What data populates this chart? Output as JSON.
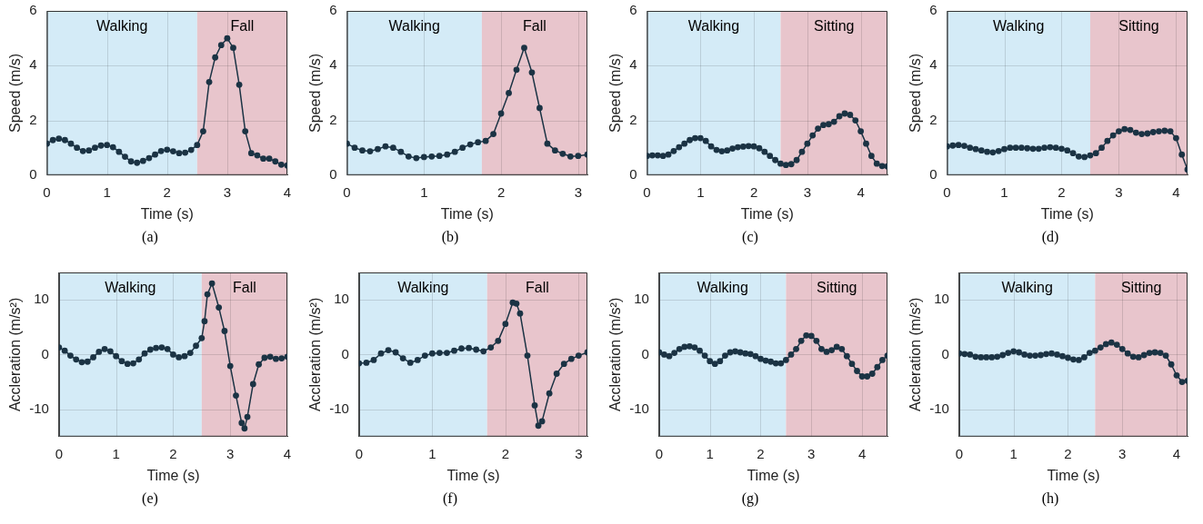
{
  "chart_data": [
    {
      "type": "line",
      "xlabel": "Time (s)",
      "ylabel": "Speed (m/s)",
      "xlim": [
        0,
        4
      ],
      "ylim": [
        0,
        6
      ],
      "xticks": [
        0,
        1,
        2,
        3,
        4
      ],
      "yticks": [
        0,
        2,
        4,
        6
      ],
      "grid": true,
      "marker": "circle",
      "annotations": [
        "(a)"
      ],
      "bands": [
        {
          "axis": "x",
          "from": 0,
          "to": 2.5,
          "label": "Walking",
          "color": "#d4ebf7"
        },
        {
          "axis": "x",
          "from": 2.5,
          "to": 4,
          "label": "Fall",
          "color": "#e8c5cc"
        }
      ],
      "series": [
        {
          "color": "#1b3344",
          "x": [
            0,
            0.1,
            0.2,
            0.3,
            0.4,
            0.5,
            0.6,
            0.7,
            0.8,
            0.9,
            1,
            1.1,
            1.2,
            1.3,
            1.4,
            1.5,
            1.6,
            1.7,
            1.8,
            1.9,
            2,
            2.1,
            2.2,
            2.3,
            2.4,
            2.5,
            2.6,
            2.7,
            2.8,
            2.9,
            3,
            3.1,
            3.2,
            3.3,
            3.4,
            3.5,
            3.6,
            3.7,
            3.8,
            3.9,
            4
          ],
          "values": [
            1.15,
            1.28,
            1.33,
            1.28,
            1.15,
            1,
            0.88,
            0.9,
            1,
            1.08,
            1.1,
            1.02,
            0.85,
            0.67,
            0.5,
            0.45,
            0.52,
            0.62,
            0.75,
            0.88,
            0.93,
            0.87,
            0.8,
            0.82,
            0.92,
            1.1,
            1.6,
            3.4,
            4.3,
            4.75,
            5,
            4.65,
            3.3,
            1.6,
            0.8,
            0.72,
            0.6,
            0.6,
            0.5,
            0.38,
            0.35
          ]
        }
      ]
    },
    {
      "type": "line",
      "xlabel": "Time (s)",
      "ylabel": "Speed (m/s)",
      "xlim": [
        0,
        3.12
      ],
      "ylim": [
        0,
        6
      ],
      "xticks": [
        0,
        1,
        2,
        3
      ],
      "yticks": [
        0,
        2,
        4,
        6
      ],
      "grid": true,
      "marker": "circle",
      "annotations": [
        "(b)"
      ],
      "bands": [
        {
          "axis": "x",
          "from": 0,
          "to": 1.75,
          "label": "Walking",
          "color": "#d4ebf7"
        },
        {
          "axis": "x",
          "from": 1.75,
          "to": 3.12,
          "label": "Fall",
          "color": "#e8c5cc"
        }
      ],
      "series": [
        {
          "color": "#1b3344",
          "x": [
            0,
            0.1,
            0.2,
            0.3,
            0.4,
            0.5,
            0.6,
            0.7,
            0.8,
            0.9,
            1,
            1.1,
            1.2,
            1.3,
            1.4,
            1.5,
            1.6,
            1.7,
            1.8,
            1.9,
            2,
            2.1,
            2.2,
            2.3,
            2.4,
            2.5,
            2.6,
            2.7,
            2.8,
            2.9,
            3,
            3.12
          ],
          "values": [
            1.15,
            1,
            0.9,
            0.87,
            0.95,
            1.05,
            1,
            0.85,
            0.68,
            0.62,
            0.66,
            0.68,
            0.7,
            0.75,
            0.85,
            1,
            1.12,
            1.2,
            1.25,
            1.5,
            2.25,
            3,
            3.85,
            4.65,
            3.75,
            2.45,
            1.15,
            0.9,
            0.78,
            0.68,
            0.7,
            0.75
          ]
        }
      ]
    },
    {
      "type": "line",
      "xlabel": "Time (s)",
      "ylabel": "Speed (m/s)",
      "xlim": [
        0,
        4.5
      ],
      "ylim": [
        0,
        6
      ],
      "xticks": [
        0,
        1,
        2,
        3,
        4
      ],
      "yticks": [
        0,
        2,
        4,
        6
      ],
      "grid": true,
      "marker": "circle",
      "annotations": [
        "(c)"
      ],
      "bands": [
        {
          "axis": "x",
          "from": 0,
          "to": 2.5,
          "label": "Walking",
          "color": "#d4ebf7"
        },
        {
          "axis": "x",
          "from": 2.5,
          "to": 4.5,
          "label": "Sitting",
          "color": "#e8c5cc"
        }
      ],
      "series": [
        {
          "color": "#1b3344",
          "x": [
            0,
            0.1,
            0.2,
            0.3,
            0.4,
            0.5,
            0.6,
            0.7,
            0.8,
            0.9,
            1,
            1.1,
            1.2,
            1.3,
            1.4,
            1.5,
            1.6,
            1.7,
            1.8,
            1.9,
            2,
            2.1,
            2.2,
            2.3,
            2.4,
            2.5,
            2.6,
            2.7,
            2.8,
            2.9,
            3,
            3.1,
            3.2,
            3.3,
            3.4,
            3.5,
            3.6,
            3.7,
            3.8,
            3.9,
            4,
            4.1,
            4.2,
            4.3,
            4.4,
            4.5
          ],
          "values": [
            0.7,
            0.72,
            0.72,
            0.7,
            0.75,
            0.88,
            1.02,
            1.15,
            1.28,
            1.35,
            1.35,
            1.25,
            1.05,
            0.92,
            0.87,
            0.9,
            0.97,
            1.02,
            1.04,
            1.06,
            1.05,
            0.98,
            0.85,
            0.7,
            0.55,
            0.42,
            0.37,
            0.4,
            0.55,
            0.85,
            1.15,
            1.45,
            1.7,
            1.83,
            1.86,
            1.95,
            2.15,
            2.25,
            2.2,
            2,
            1.6,
            1.15,
            0.7,
            0.42,
            0.33,
            0.32
          ]
        }
      ]
    },
    {
      "type": "line",
      "xlabel": "Time (s)",
      "ylabel": "Speed (m/s)",
      "xlim": [
        0,
        4.2
      ],
      "ylim": [
        0,
        6
      ],
      "xticks": [
        0,
        1,
        2,
        3,
        4
      ],
      "yticks": [
        0,
        2,
        4,
        6
      ],
      "grid": true,
      "marker": "circle",
      "annotations": [
        "(d)"
      ],
      "bands": [
        {
          "axis": "x",
          "from": 0,
          "to": 2.5,
          "label": "Walking",
          "color": "#d4ebf7"
        },
        {
          "axis": "x",
          "from": 2.5,
          "to": 4.2,
          "label": "Sitting",
          "color": "#e8c5cc"
        }
      ],
      "series": [
        {
          "color": "#1b3344",
          "x": [
            0,
            0.1,
            0.2,
            0.3,
            0.4,
            0.5,
            0.6,
            0.7,
            0.8,
            0.9,
            1,
            1.1,
            1.2,
            1.3,
            1.4,
            1.5,
            1.6,
            1.7,
            1.8,
            1.9,
            2,
            2.1,
            2.2,
            2.3,
            2.4,
            2.5,
            2.6,
            2.7,
            2.8,
            2.9,
            3,
            3.1,
            3.2,
            3.3,
            3.4,
            3.5,
            3.6,
            3.7,
            3.8,
            3.9,
            4,
            4.1,
            4.2
          ],
          "values": [
            1.05,
            1.08,
            1.1,
            1.07,
            1,
            0.95,
            0.9,
            0.85,
            0.83,
            0.88,
            0.95,
            1,
            1,
            1,
            0.98,
            0.96,
            0.96,
            1,
            1.02,
            1,
            0.96,
            0.9,
            0.8,
            0.68,
            0.66,
            0.72,
            0.8,
            1,
            1.25,
            1.45,
            1.6,
            1.68,
            1.65,
            1.55,
            1.5,
            1.52,
            1.57,
            1.6,
            1.62,
            1.6,
            1.35,
            0.75,
            0.2
          ]
        }
      ]
    },
    {
      "type": "line",
      "xlabel": "Time (s)",
      "ylabel": "Accleration (m/s²)",
      "xlim": [
        0,
        4
      ],
      "ylim": [
        -15,
        15
      ],
      "xticks": [
        0,
        1,
        2,
        3,
        4
      ],
      "yticks": [
        -10,
        0,
        10
      ],
      "grid": true,
      "marker": "circle",
      "annotations": [
        "(e)"
      ],
      "bands": [
        {
          "axis": "x",
          "from": 0,
          "to": 2.5,
          "label": "Walking",
          "color": "#d4ebf7"
        },
        {
          "axis": "x",
          "from": 2.5,
          "to": 4,
          "label": "Fall",
          "color": "#e8c5cc"
        }
      ],
      "series": [
        {
          "color": "#1b3344",
          "x": [
            0,
            0.1,
            0.2,
            0.3,
            0.4,
            0.5,
            0.6,
            0.7,
            0.8,
            0.9,
            1,
            1.1,
            1.2,
            1.3,
            1.4,
            1.5,
            1.6,
            1.7,
            1.8,
            1.9,
            2,
            2.1,
            2.2,
            2.3,
            2.4,
            2.5,
            2.55,
            2.6,
            2.68,
            2.8,
            2.9,
            3,
            3.1,
            3.2,
            3.25,
            3.3,
            3.4,
            3.5,
            3.6,
            3.7,
            3.8,
            3.9,
            4
          ],
          "values": [
            1.3,
            0.7,
            -0.2,
            -0.9,
            -1.4,
            -1.3,
            -0.5,
            0.5,
            1,
            0.6,
            -0.3,
            -1.2,
            -1.7,
            -1.6,
            -0.9,
            0.2,
            0.9,
            1.2,
            1.3,
            1,
            0,
            -0.5,
            -0.3,
            0.3,
            1.6,
            3,
            6.1,
            11,
            13,
            8.6,
            4.3,
            -2.1,
            -7.5,
            -12.5,
            -13.5,
            -11.4,
            -5.4,
            -1.8,
            -0.6,
            -0.4,
            -0.8,
            -0.7,
            -0.4
          ]
        }
      ]
    },
    {
      "type": "line",
      "xlabel": "Time (s)",
      "ylabel": "Accleration (m/s²)",
      "xlim": [
        0,
        3.12
      ],
      "ylim": [
        -15,
        15
      ],
      "xticks": [
        0,
        1,
        2,
        3
      ],
      "yticks": [
        -10,
        0,
        10
      ],
      "grid": true,
      "marker": "circle",
      "annotations": [
        "(f)"
      ],
      "bands": [
        {
          "axis": "x",
          "from": 0,
          "to": 1.75,
          "label": "Walking",
          "color": "#d4ebf7"
        },
        {
          "axis": "x",
          "from": 1.75,
          "to": 3.12,
          "label": "Fall",
          "color": "#e8c5cc"
        }
      ],
      "series": [
        {
          "color": "#1b3344",
          "x": [
            0,
            0.1,
            0.2,
            0.3,
            0.4,
            0.5,
            0.6,
            0.7,
            0.8,
            0.9,
            1,
            1.1,
            1.2,
            1.3,
            1.4,
            1.5,
            1.6,
            1.7,
            1.8,
            1.9,
            2,
            2.1,
            2.15,
            2.2,
            2.3,
            2.4,
            2.45,
            2.5,
            2.6,
            2.7,
            2.8,
            2.9,
            3,
            3.12
          ],
          "values": [
            -1.6,
            -1.5,
            -1,
            0.2,
            0.8,
            0.4,
            -0.7,
            -1.5,
            -1,
            -0.2,
            0.2,
            0.3,
            0.3,
            0.7,
            1.1,
            1.2,
            0.9,
            0.6,
            1.3,
            2.5,
            5.6,
            9.5,
            9.3,
            7.5,
            -0.2,
            -9.3,
            -13,
            -12.2,
            -7.1,
            -3.5,
            -1.7,
            -0.8,
            -0.2,
            0.4
          ]
        }
      ]
    },
    {
      "type": "line",
      "xlabel": "Time (s)",
      "ylabel": "Accleration (m/s²)",
      "xlim": [
        0,
        4.5
      ],
      "ylim": [
        -15,
        15
      ],
      "xticks": [
        0,
        1,
        2,
        3,
        4
      ],
      "yticks": [
        -10,
        0,
        10
      ],
      "grid": true,
      "marker": "circle",
      "annotations": [
        "(g)"
      ],
      "bands": [
        {
          "axis": "x",
          "from": 0,
          "to": 2.5,
          "label": "Walking",
          "color": "#d4ebf7"
        },
        {
          "axis": "x",
          "from": 2.5,
          "to": 4.5,
          "label": "Sitting",
          "color": "#e8c5cc"
        }
      ],
      "series": [
        {
          "color": "#1b3344",
          "x": [
            0,
            0.1,
            0.2,
            0.3,
            0.4,
            0.5,
            0.6,
            0.7,
            0.8,
            0.9,
            1,
            1.1,
            1.2,
            1.3,
            1.4,
            1.5,
            1.6,
            1.7,
            1.8,
            1.9,
            2,
            2.1,
            2.2,
            2.3,
            2.4,
            2.5,
            2.6,
            2.7,
            2.8,
            2.9,
            3,
            3.1,
            3.2,
            3.3,
            3.4,
            3.5,
            3.6,
            3.7,
            3.8,
            3.9,
            4,
            4.1,
            4.2,
            4.3,
            4.4,
            4.5
          ],
          "values": [
            0.4,
            0,
            -0.3,
            0.3,
            1,
            1.4,
            1.5,
            1.3,
            0.7,
            -0.2,
            -1.2,
            -1.7,
            -1.2,
            -0.2,
            0.4,
            0.6,
            0.4,
            0.2,
            0.1,
            -0.3,
            -0.8,
            -1.1,
            -1.3,
            -1.6,
            -1.6,
            -1,
            0,
            1,
            2.5,
            3.5,
            3.4,
            2.5,
            1,
            0.5,
            0.8,
            1.4,
            1,
            -0.3,
            -1.7,
            -3,
            -4,
            -4,
            -3.5,
            -2.3,
            -1,
            -0.2
          ]
        }
      ]
    },
    {
      "type": "line",
      "xlabel": "Time (s)",
      "ylabel": "Accleration (m/s²)",
      "xlim": [
        0,
        4.2
      ],
      "ylim": [
        -15,
        15
      ],
      "xticks": [
        0,
        1,
        2,
        3,
        4
      ],
      "yticks": [
        -10,
        0,
        10
      ],
      "grid": true,
      "marker": "circle",
      "annotations": [
        "(h)"
      ],
      "bands": [
        {
          "axis": "x",
          "from": 0,
          "to": 2.5,
          "label": "Walking",
          "color": "#d4ebf7"
        },
        {
          "axis": "x",
          "from": 2.5,
          "to": 4.2,
          "label": "Sitting",
          "color": "#e8c5cc"
        }
      ],
      "series": [
        {
          "color": "#1b3344",
          "x": [
            0,
            0.1,
            0.2,
            0.3,
            0.4,
            0.5,
            0.6,
            0.7,
            0.8,
            0.9,
            1,
            1.1,
            1.2,
            1.3,
            1.4,
            1.5,
            1.6,
            1.7,
            1.8,
            1.9,
            2,
            2.1,
            2.2,
            2.3,
            2.4,
            2.5,
            2.6,
            2.7,
            2.8,
            2.9,
            3,
            3.1,
            3.2,
            3.3,
            3.4,
            3.5,
            3.6,
            3.7,
            3.8,
            3.9,
            4,
            4.1,
            4.2
          ],
          "values": [
            0.2,
            0.1,
            0,
            -0.4,
            -0.5,
            -0.5,
            -0.5,
            -0.4,
            -0.1,
            0.3,
            0.6,
            0.4,
            0,
            -0.2,
            -0.2,
            -0.1,
            0.1,
            0.2,
            0,
            -0.3,
            -0.6,
            -0.9,
            -1,
            -0.5,
            0.3,
            0.7,
            1.3,
            1.9,
            2.2,
            1.8,
            1,
            0.2,
            -0.4,
            -0.5,
            -0.1,
            0.3,
            0.4,
            0.3,
            -0.2,
            -1.8,
            -3.8,
            -5,
            -4.8
          ]
        }
      ]
    }
  ]
}
